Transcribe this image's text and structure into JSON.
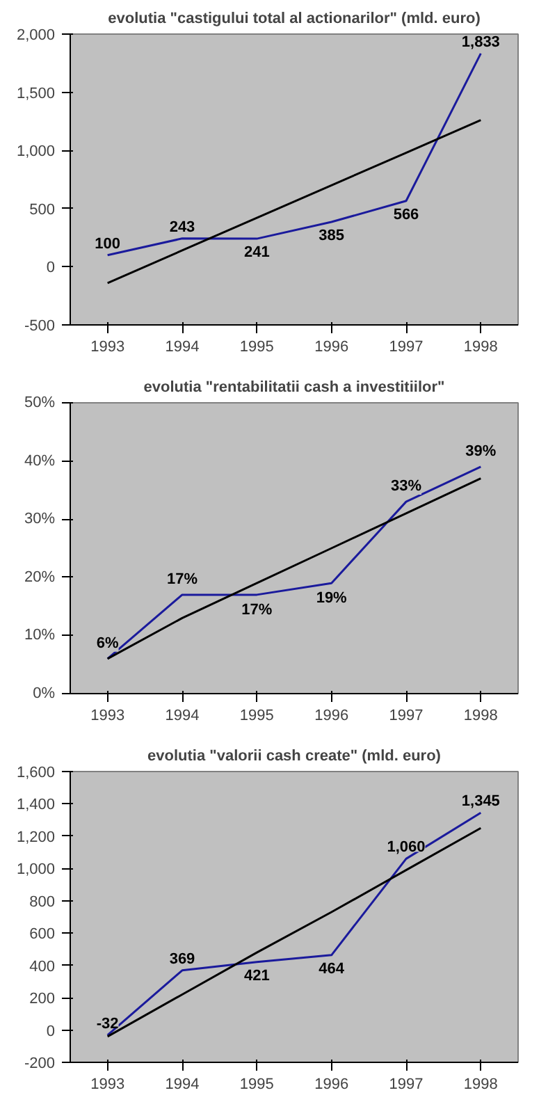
{
  "chart_data": [
    {
      "type": "line",
      "title": "evolutia \"castigului total al actionarilor\" (mld. euro)",
      "categories": [
        "1993",
        "1994",
        "1995",
        "1996",
        "1997",
        "1998"
      ],
      "ylim": [
        -500,
        2000
      ],
      "yticks": [
        {
          "value": -500,
          "label": "-500"
        },
        {
          "value": 0,
          "label": "0"
        },
        {
          "value": 500,
          "label": "500"
        },
        {
          "value": 1000,
          "label": "1,000"
        },
        {
          "value": 1500,
          "label": "1,500"
        },
        {
          "value": 2000,
          "label": "2,000"
        }
      ],
      "grid": false,
      "series": [
        {
          "color": "#1a1a9c",
          "values": [
            100,
            243,
            241,
            385,
            566,
            1833
          ],
          "value_labels": [
            "100",
            "243",
            "241",
            "385",
            "566",
            "1,833"
          ]
        },
        {
          "type": "line",
          "color": "#000000",
          "values": [
            -140,
            140,
            420,
            700,
            980,
            1260
          ]
        }
      ]
    },
    {
      "type": "line",
      "title": "evolutia \"rentabilitatii cash a investitiilor\"",
      "categories": [
        "1993",
        "1994",
        "1995",
        "1996",
        "1997",
        "1998"
      ],
      "ylim": [
        0,
        50
      ],
      "yticks": [
        {
          "value": 0,
          "label": "0%"
        },
        {
          "value": 10,
          "label": "10%"
        },
        {
          "value": 20,
          "label": "20%"
        },
        {
          "value": 30,
          "label": "30%"
        },
        {
          "value": 40,
          "label": "40%"
        },
        {
          "value": 50,
          "label": "50%"
        }
      ],
      "grid": false,
      "series": [
        {
          "color": "#1a1a9c",
          "values": [
            6,
            17,
            17,
            19,
            33,
            39
          ],
          "value_labels": [
            "6%",
            "17%",
            "17%",
            "19%",
            "33%",
            "39%"
          ]
        },
        {
          "type": "line",
          "color": "#000000",
          "values": [
            6,
            13,
            19,
            25,
            31,
            37
          ]
        }
      ]
    },
    {
      "type": "line",
      "title": "evolutia \"valorii cash create\" (mld. euro)",
      "categories": [
        "1993",
        "1994",
        "1995",
        "1996",
        "1997",
        "1998"
      ],
      "ylim": [
        -200,
        1600
      ],
      "yticks": [
        {
          "value": -200,
          "label": "-200"
        },
        {
          "value": 0,
          "label": "0"
        },
        {
          "value": 200,
          "label": "200"
        },
        {
          "value": 400,
          "label": "400"
        },
        {
          "value": 600,
          "label": "600"
        },
        {
          "value": 800,
          "label": "800"
        },
        {
          "value": 1000,
          "label": "1,000"
        },
        {
          "value": 1200,
          "label": "1,200"
        },
        {
          "value": 1400,
          "label": "1,400"
        },
        {
          "value": 1600,
          "label": "1,600"
        }
      ],
      "grid": false,
      "series": [
        {
          "color": "#1a1a9c",
          "values": [
            -32,
            369,
            421,
            464,
            1060,
            1345
          ],
          "value_labels": [
            "-32",
            "369",
            "421",
            "464",
            "1,060",
            "1,345"
          ]
        },
        {
          "type": "line",
          "color": "#000000",
          "values": [
            -40,
            220,
            480,
            730,
            990,
            1250
          ]
        }
      ]
    }
  ]
}
